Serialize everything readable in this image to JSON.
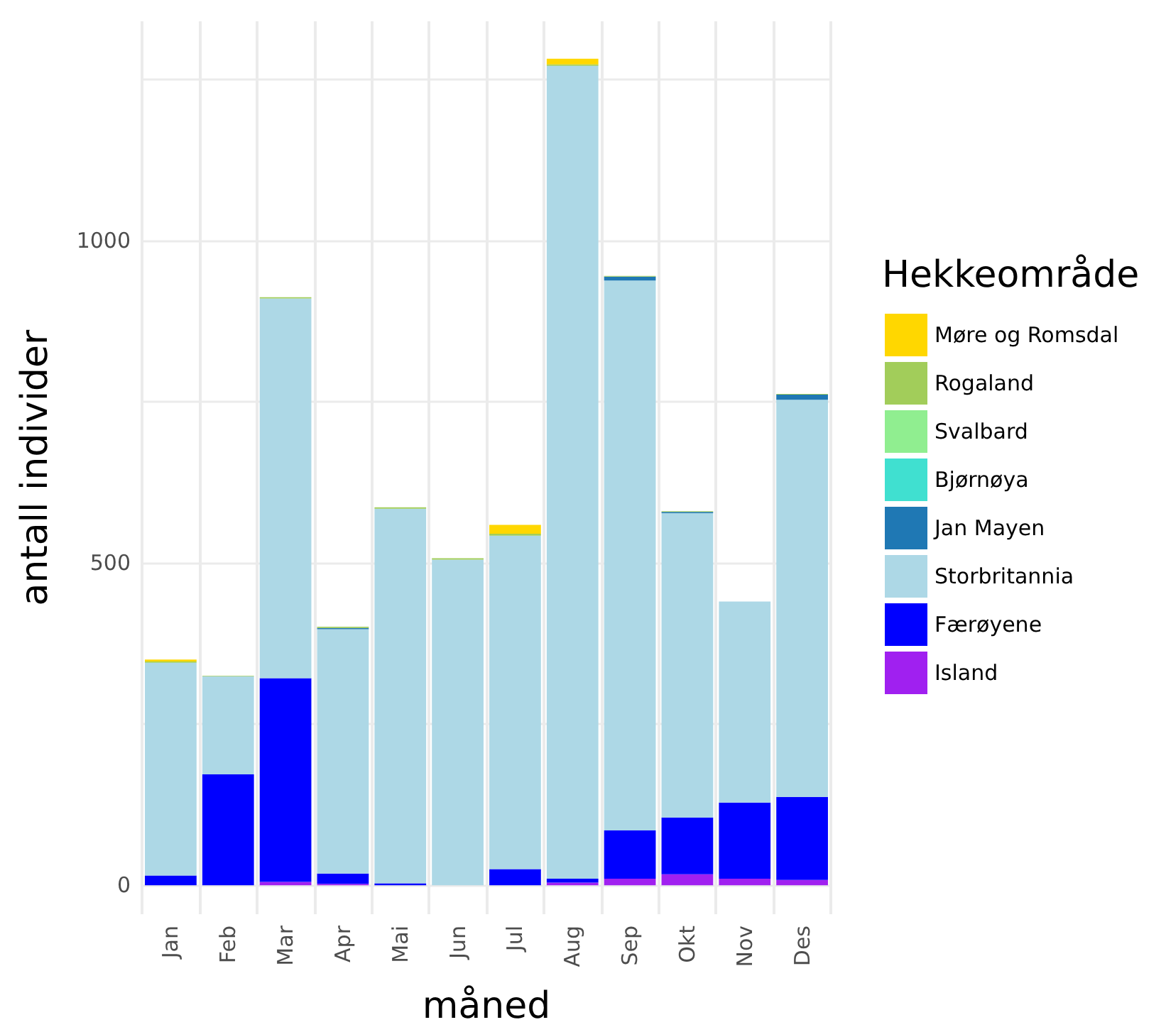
{
  "chart_data": {
    "type": "bar",
    "stacked": true,
    "xlabel": "måned",
    "ylabel": "antall individer",
    "legend_title": "Hekkeområde",
    "legend": "right",
    "grid": true,
    "categories": [
      "Jan",
      "Feb",
      "Mar",
      "Apr",
      "Mai",
      "Jun",
      "Jul",
      "Aug",
      "Sep",
      "Okt",
      "Nov",
      "Des"
    ],
    "ylim": [
      -45,
      1340
    ],
    "yticks": [
      0,
      {
        "value": 250,
        "label": null
      },
      500,
      {
        "value": 750,
        "label": null
      },
      1000,
      {
        "value": 1250,
        "label": null
      }
    ],
    "series": [
      {
        "name": "Island",
        "color": "#a020f0",
        "values": [
          0,
          0,
          5,
          2,
          0,
          0,
          0,
          4,
          10,
          17,
          10,
          8
        ]
      },
      {
        "name": "Færøyene",
        "color": "#0000ff",
        "values": [
          15,
          172,
          316,
          16,
          3,
          0,
          25,
          6,
          75,
          88,
          118,
          129
        ]
      },
      {
        "name": "Storbritannia",
        "color": "#add8e6",
        "values": [
          330,
          152,
          589,
          379,
          581,
          505,
          517,
          1261,
          853,
          472,
          312,
          616
        ]
      },
      {
        "name": "Jan Mayen",
        "color": "#1f78b4",
        "values": [
          0,
          0,
          0,
          2,
          0,
          0,
          0,
          0,
          6,
          2,
          0,
          8
        ]
      },
      {
        "name": "Bjørnøya",
        "color": "#40e0d0",
        "values": [
          0,
          0,
          0,
          0,
          0,
          0,
          0,
          0,
          0,
          0,
          0,
          0
        ]
      },
      {
        "name": "Svalbard",
        "color": "#90ee90",
        "values": [
          0,
          0,
          0,
          0,
          0,
          0,
          0,
          0,
          0,
          0,
          0,
          0
        ]
      },
      {
        "name": "Rogaland",
        "color": "#a2cd5a",
        "values": [
          2,
          1,
          2,
          2,
          2,
          2,
          3,
          2,
          1,
          1,
          0,
          1
        ]
      },
      {
        "name": "Møre og Romsdal",
        "color": "#ffd700",
        "values": [
          3,
          0,
          0,
          0,
          0,
          0,
          14,
          9,
          0,
          0,
          0,
          0
        ]
      }
    ]
  }
}
